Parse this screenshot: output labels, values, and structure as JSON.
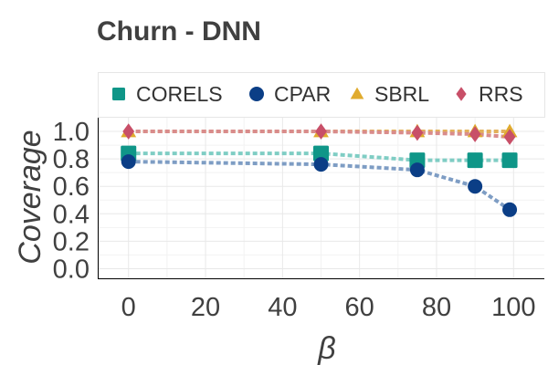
{
  "chart_data": {
    "type": "line",
    "title": "Churn - DNN",
    "xlabel": "β",
    "ylabel": "Coverage",
    "xlim": [
      -8,
      108
    ],
    "ylim": [
      -0.07,
      1.1
    ],
    "xticks": [
      0,
      20,
      40,
      60,
      80,
      100
    ],
    "yticks": [
      0.0,
      0.2,
      0.4,
      0.6,
      0.8,
      1.0
    ],
    "ytick_labels": [
      "0.0",
      "0.2",
      "0.4",
      "0.6",
      "0.8",
      "1.0"
    ],
    "grid": true,
    "legend_position": "top",
    "series": [
      {
        "name": "CORELS",
        "marker": "square",
        "color": "#0f9688",
        "line_color": "#7fcdc4",
        "x": [
          0,
          50,
          75,
          90,
          99
        ],
        "y": [
          0.84,
          0.84,
          0.79,
          0.79,
          0.79
        ]
      },
      {
        "name": "CPAR",
        "marker": "circle",
        "color": "#0b3e86",
        "line_color": "#7e9dc4",
        "x": [
          0,
          50,
          75,
          90,
          99
        ],
        "y": [
          0.78,
          0.76,
          0.72,
          0.6,
          0.43
        ]
      },
      {
        "name": "SBRL",
        "marker": "triangle",
        "color": "#e0ab2e",
        "line_color": "#e3b05a",
        "x": [
          0,
          50,
          75,
          90,
          99
        ],
        "y": [
          1.0,
          1.0,
          1.0,
          1.0,
          1.0
        ]
      },
      {
        "name": "RRS",
        "marker": "diamond",
        "color": "#c84f68",
        "line_color": "#d98c8c",
        "x": [
          0,
          50,
          75,
          90,
          99
        ],
        "y": [
          1.0,
          1.0,
          0.99,
          0.98,
          0.96
        ]
      }
    ]
  }
}
